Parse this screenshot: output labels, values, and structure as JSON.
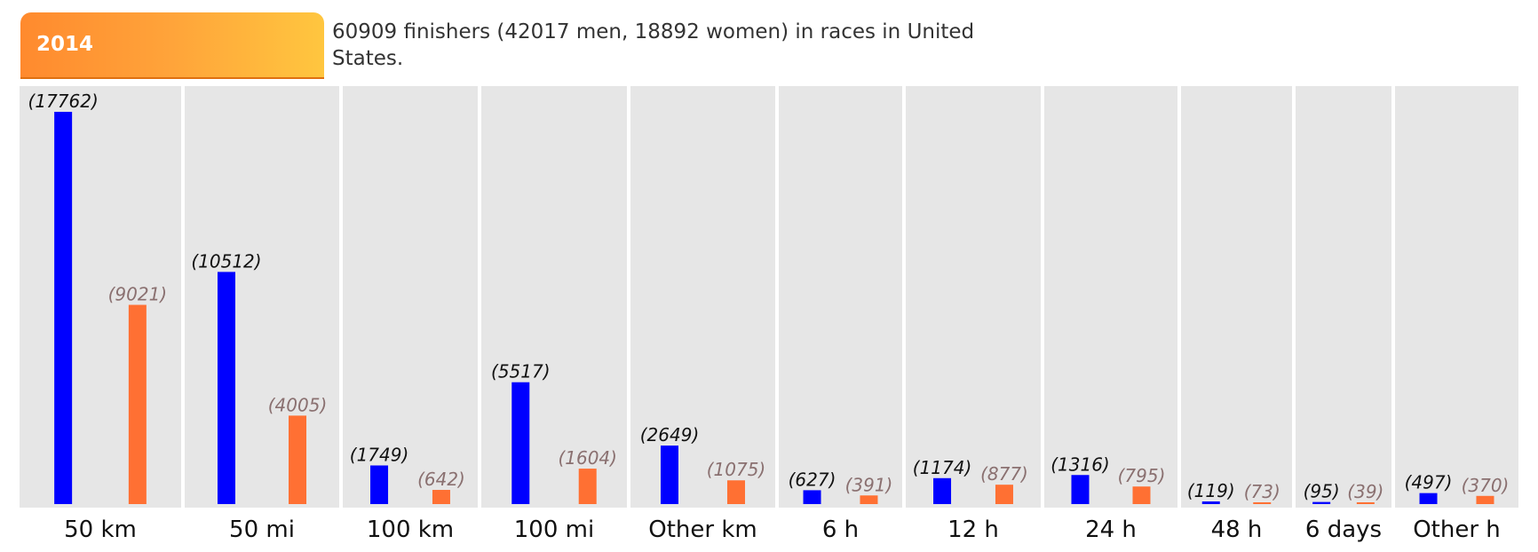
{
  "year_tab": {
    "label": "2014"
  },
  "summary": "60909 finishers (42017 men, 18892 women) in races in United States.",
  "colors": {
    "men": "#0000ff",
    "women": "#ff7033",
    "panel": "#e6e6e6"
  },
  "chart_data": {
    "type": "bar",
    "categories": [
      "50 km",
      "50 mi",
      "100 km",
      "100 mi",
      "Other km",
      "6 h",
      "12 h",
      "24 h",
      "48 h",
      "6 days",
      "Other h"
    ],
    "series": [
      {
        "key": "men",
        "values": [
          17762,
          10512,
          1749,
          5517,
          2649,
          627,
          1174,
          1316,
          119,
          95,
          497
        ]
      },
      {
        "key": "women",
        "values": [
          9021,
          4005,
          642,
          1604,
          1075,
          391,
          877,
          795,
          73,
          39,
          370
        ]
      }
    ],
    "value_label_format": "(value)",
    "legend": "none",
    "grid": false
  }
}
